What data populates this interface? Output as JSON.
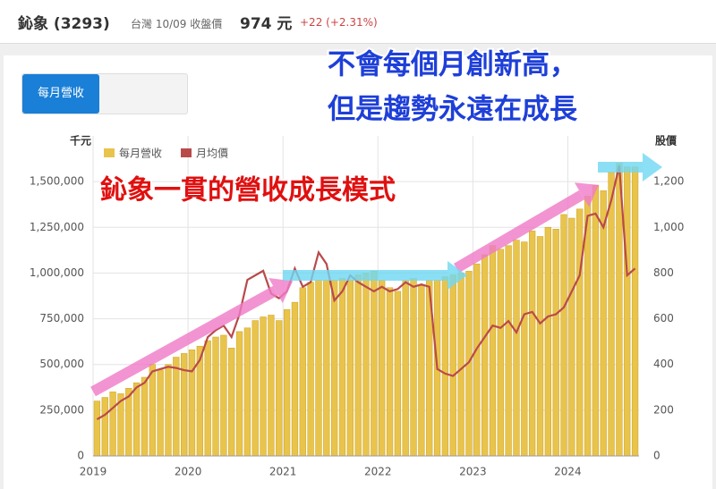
{
  "header": {
    "name": "鈊象 (3293)",
    "market": "台灣 10/09 收盤價",
    "price": "974 元",
    "change": "+22 (+2.31%)"
  },
  "tab": "每月營收",
  "chart_data": {
    "type": "bar-line",
    "y_label": "千元",
    "y2_label": "股價",
    "annotations": [
      "鈊象一貫的營收成長模式",
      "不會每個月創新高，",
      "但是趨勢永遠在成長"
    ],
    "categories": [
      "2019",
      null,
      null,
      null,
      null,
      null,
      null,
      null,
      null,
      null,
      null,
      null,
      "2020",
      null,
      null,
      null,
      null,
      null,
      null,
      null,
      null,
      null,
      null,
      null,
      "2021",
      null,
      null,
      null,
      null,
      null,
      null,
      null,
      null,
      null,
      null,
      null,
      "2022",
      null,
      null,
      null,
      null,
      null,
      null,
      null,
      null,
      null,
      null,
      null,
      "2023",
      null,
      null,
      null,
      null,
      null,
      null,
      null,
      null,
      null,
      null,
      null,
      "2024",
      null,
      null,
      null,
      null,
      null,
      null,
      null,
      null
    ],
    "series": [
      {
        "name": "每月營收",
        "color": "#e9c44c",
        "type": "bar",
        "values": [
          300000,
          320000,
          350000,
          340000,
          370000,
          400000,
          430000,
          500000,
          470000,
          500000,
          540000,
          560000,
          580000,
          600000,
          630000,
          650000,
          660000,
          590000,
          680000,
          700000,
          740000,
          760000,
          770000,
          740000,
          800000,
          840000,
          920000,
          950000,
          960000,
          960000,
          960000,
          970000,
          960000,
          990000,
          1000000,
          1010000,
          960000,
          920000,
          900000,
          960000,
          970000,
          930000,
          960000,
          960000,
          980000,
          990000,
          1000000,
          1010000,
          1050000,
          1100000,
          1150000,
          1130000,
          1150000,
          1180000,
          1170000,
          1230000,
          1200000,
          1250000,
          1240000,
          1320000,
          1300000,
          1350000,
          1420000,
          1480000,
          1450000,
          1550000,
          1600000,
          1580000,
          1580000
        ]
      },
      {
        "name": "月均價",
        "color": "#b94a4a",
        "type": "line",
        "axis": "y2",
        "values": [
          160,
          180,
          210,
          240,
          260,
          300,
          320,
          370,
          380,
          390,
          385,
          375,
          370,
          420,
          520,
          550,
          570,
          520,
          620,
          770,
          790,
          810,
          710,
          690,
          720,
          820,
          740,
          760,
          890,
          840,
          680,
          720,
          790,
          760,
          740,
          720,
          740,
          720,
          730,
          760,
          740,
          750,
          740,
          380,
          360,
          350,
          380,
          410,
          470,
          520,
          570,
          560,
          590,
          540,
          620,
          630,
          580,
          610,
          620,
          650,
          720,
          790,
          1050,
          1060,
          1000,
          1120,
          1270,
          790,
          820
        ]
      }
    ],
    "ylim": [
      0,
      1750000
    ],
    "yticks": [
      0,
      {
        "value": 250000,
        "label": "250,000"
      },
      {
        "value": 500000,
        "label": "500,000"
      },
      {
        "value": 750000,
        "label": "750,000"
      },
      {
        "value": 1000000,
        "label": "1,000,000"
      },
      {
        "value": 1250000,
        "label": "1,250,000"
      },
      {
        "value": 1500000,
        "label": "1,500,000"
      }
    ],
    "y2lim": [
      0,
      1400
    ],
    "y2ticks": [
      0,
      200,
      400,
      600,
      800,
      {
        "value": 1000,
        "label": "1,000"
      },
      {
        "value": 1200,
        "label": "1,200"
      }
    ],
    "grid": true
  }
}
